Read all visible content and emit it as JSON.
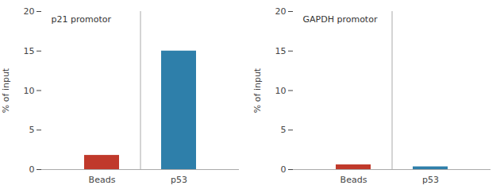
{
  "chart_data": [
    {
      "type": "bar",
      "title": "p21 promotor",
      "categories": [
        "Beads",
        "p53"
      ],
      "values": [
        1.8,
        15.0
      ],
      "colors": [
        "#c0392b",
        "#2e7faa"
      ],
      "ylabel": "% of input",
      "ylim": [
        0,
        20
      ],
      "yticks": [
        0,
        5,
        10,
        15,
        20
      ],
      "grid": false
    },
    {
      "type": "bar",
      "title": "GAPDH promotor",
      "categories": [
        "Beads",
        "p53"
      ],
      "values": [
        0.6,
        0.35
      ],
      "colors": [
        "#c0392b",
        "#2e7faa"
      ],
      "ylabel": "% of input",
      "ylim": [
        0,
        20
      ],
      "yticks": [
        0,
        5,
        10,
        15,
        20
      ],
      "grid": false
    }
  ]
}
